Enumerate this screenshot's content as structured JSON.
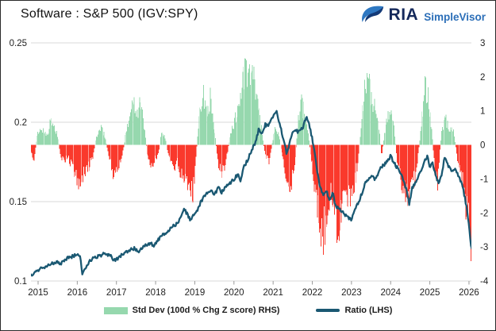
{
  "header": {
    "title": "Software : S&P 500 (IGV:SPY)",
    "logo": {
      "brand": "RIA",
      "product": "SimpleVisor"
    }
  },
  "colors": {
    "bar_positive": "#96d8ae",
    "bar_negative": "#fa392c",
    "ratio_line": "#1a5872",
    "grid": "#d9d9d9",
    "axis_text": "#1f1f1f",
    "tick_mark": "#9a9a9a",
    "brand_navy": "#15295b",
    "brand_blue": "#2c6fb8",
    "eagle_light": "#2e78c2",
    "eagle_dark": "#143a77"
  },
  "chart_data": {
    "type": "combo_bar_line",
    "title": "Software : S&P 500 (IGV:SPY)",
    "x_range": [
      2014.82,
      2026.1
    ],
    "x_ticks": [
      2015,
      2016,
      2017,
      2018,
      2019,
      2020,
      2021,
      2022,
      2023,
      2024,
      2025,
      2026
    ],
    "left_axis": {
      "side": "left",
      "range": [
        0.1,
        0.25
      ],
      "ticks": [
        {
          "v": 0.25,
          "label": "0.25"
        },
        {
          "v": 0.2,
          "label": "0.2"
        },
        {
          "v": 0.15,
          "label": "0.15"
        },
        {
          "v": 0.1,
          "label": "0.1"
        }
      ]
    },
    "right_axis": {
      "side": "right",
      "range": [
        -4,
        3
      ],
      "ticks": [
        {
          "v": 3,
          "label": "3"
        },
        {
          "v": 2,
          "label": "2"
        },
        {
          "v": 1,
          "label": "1"
        },
        {
          "v": 0,
          "label": "0"
        },
        {
          "v": -1,
          "label": "-1"
        },
        {
          "v": -2,
          "label": "-2"
        },
        {
          "v": -3,
          "label": "-3"
        },
        {
          "v": -4,
          "label": "-4"
        }
      ]
    },
    "legend": {
      "position": "bottom",
      "items": [
        {
          "label": "Std Dev (100d % Chg Z score) RHS)",
          "swatch": "bar"
        },
        {
          "label": "Ratio (LHS)",
          "swatch": "line"
        }
      ]
    },
    "series": [
      {
        "name": "Std Dev (100d % Chg Z score) RHS)",
        "type": "bar",
        "axis": "right",
        "points": [
          [
            2014.82,
            -0.25
          ],
          [
            2014.9,
            -0.5
          ],
          [
            2014.98,
            0.35
          ],
          [
            2015.06,
            0.55
          ],
          [
            2015.15,
            0.45
          ],
          [
            2015.25,
            0.4
          ],
          [
            2015.33,
            0.85
          ],
          [
            2015.42,
            0.6
          ],
          [
            2015.5,
            0.3
          ],
          [
            2015.58,
            -0.35
          ],
          [
            2015.66,
            -0.55
          ],
          [
            2015.75,
            -0.4
          ],
          [
            2015.85,
            -0.65
          ],
          [
            2015.95,
            -0.95
          ],
          [
            2016.04,
            -1.2
          ],
          [
            2016.1,
            -1.25
          ],
          [
            2016.2,
            -0.9
          ],
          [
            2016.3,
            -0.7
          ],
          [
            2016.4,
            -0.35
          ],
          [
            2016.5,
            0.3
          ],
          [
            2016.6,
            0.55
          ],
          [
            2016.7,
            0.35
          ],
          [
            2016.8,
            -0.35
          ],
          [
            2016.9,
            -0.9
          ],
          [
            2017.0,
            -1.0
          ],
          [
            2017.08,
            -0.65
          ],
          [
            2017.17,
            -0.2
          ],
          [
            2017.27,
            0.65
          ],
          [
            2017.38,
            1.3
          ],
          [
            2017.45,
            1.5
          ],
          [
            2017.53,
            1.15
          ],
          [
            2017.6,
            1.45
          ],
          [
            2017.7,
            0.75
          ],
          [
            2017.8,
            -0.5
          ],
          [
            2017.9,
            -0.65
          ],
          [
            2018.0,
            -0.5
          ],
          [
            2018.08,
            -0.3
          ],
          [
            2018.15,
            0.45
          ],
          [
            2018.25,
            0.25
          ],
          [
            2018.35,
            -0.55
          ],
          [
            2018.45,
            -0.85
          ],
          [
            2018.55,
            -0.6
          ],
          [
            2018.65,
            -0.95
          ],
          [
            2018.75,
            -1.25
          ],
          [
            2018.85,
            -1.6
          ],
          [
            2018.95,
            -1.72
          ],
          [
            2019.03,
            -0.5
          ],
          [
            2019.1,
            1.0
          ],
          [
            2019.2,
            1.7
          ],
          [
            2019.3,
            1.25
          ],
          [
            2019.4,
            1.55
          ],
          [
            2019.5,
            0.55
          ],
          [
            2019.6,
            -0.6
          ],
          [
            2019.7,
            -1.05
          ],
          [
            2019.8,
            -0.5
          ],
          [
            2019.9,
            0.3
          ],
          [
            2020.0,
            0.75
          ],
          [
            2020.1,
            1.2
          ],
          [
            2020.2,
            1.9
          ],
          [
            2020.3,
            2.55
          ],
          [
            2020.38,
            2.2
          ],
          [
            2020.45,
            2.45
          ],
          [
            2020.55,
            1.85
          ],
          [
            2020.65,
            1.15
          ],
          [
            2020.72,
            0.35
          ],
          [
            2020.8,
            -0.4
          ],
          [
            2020.9,
            -0.55
          ],
          [
            2021.0,
            0.25
          ],
          [
            2021.07,
            0.6
          ],
          [
            2021.15,
            0.3
          ],
          [
            2021.25,
            -0.55
          ],
          [
            2021.35,
            -1.05
          ],
          [
            2021.45,
            -1.35
          ],
          [
            2021.55,
            -0.7
          ],
          [
            2021.65,
            0.9
          ],
          [
            2021.72,
            1.5
          ],
          [
            2021.8,
            1.05
          ],
          [
            2021.9,
            0.35
          ],
          [
            2021.98,
            -0.6
          ],
          [
            2022.08,
            -1.7
          ],
          [
            2022.18,
            -2.65
          ],
          [
            2022.28,
            -3.05
          ],
          [
            2022.38,
            -2.2
          ],
          [
            2022.48,
            -1.55
          ],
          [
            2022.58,
            -2.45
          ],
          [
            2022.68,
            -2.75
          ],
          [
            2022.78,
            -1.65
          ],
          [
            2022.88,
            -2.1
          ],
          [
            2022.98,
            -1.6
          ],
          [
            2023.08,
            -1.25
          ],
          [
            2023.17,
            -0.5
          ],
          [
            2023.27,
            0.95
          ],
          [
            2023.37,
            2.3
          ],
          [
            2023.47,
            1.8
          ],
          [
            2023.57,
            1.4
          ],
          [
            2023.67,
            1.05
          ],
          [
            2023.77,
            -0.35
          ],
          [
            2023.87,
            0.65
          ],
          [
            2023.97,
            1.25
          ],
          [
            2024.07,
            0.85
          ],
          [
            2024.17,
            -0.55
          ],
          [
            2024.27,
            -1.25
          ],
          [
            2024.37,
            -1.6
          ],
          [
            2024.47,
            -1.9
          ],
          [
            2024.57,
            -1.3
          ],
          [
            2024.67,
            -0.85
          ],
          [
            2024.77,
            0.55
          ],
          [
            2024.87,
            1.9
          ],
          [
            2024.97,
            1.45
          ],
          [
            2025.05,
            0.55
          ],
          [
            2025.12,
            -0.75
          ],
          [
            2025.2,
            -1.35
          ],
          [
            2025.3,
            0.5
          ],
          [
            2025.4,
            0.9
          ],
          [
            2025.5,
            0.45
          ],
          [
            2025.6,
            0.6
          ],
          [
            2025.7,
            -0.45
          ],
          [
            2025.8,
            -1.0
          ],
          [
            2025.88,
            -1.6
          ],
          [
            2025.95,
            -2.3
          ],
          [
            2026.02,
            -3.0
          ],
          [
            2026.07,
            -3.7
          ],
          [
            2026.1,
            -3.3
          ]
        ]
      },
      {
        "name": "Ratio (LHS)",
        "type": "line",
        "axis": "left",
        "points": [
          [
            2014.82,
            0.1035
          ],
          [
            2014.95,
            0.1055
          ],
          [
            2015.08,
            0.108
          ],
          [
            2015.2,
            0.1095
          ],
          [
            2015.3,
            0.1105
          ],
          [
            2015.42,
            0.1118
          ],
          [
            2015.5,
            0.1125
          ],
          [
            2015.58,
            0.1108
          ],
          [
            2015.68,
            0.1135
          ],
          [
            2015.8,
            0.1148
          ],
          [
            2015.92,
            0.116
          ],
          [
            2016.0,
            0.1172
          ],
          [
            2016.07,
            0.1162
          ],
          [
            2016.13,
            0.1035
          ],
          [
            2016.22,
            0.109
          ],
          [
            2016.32,
            0.1125
          ],
          [
            2016.45,
            0.1148
          ],
          [
            2016.55,
            0.1158
          ],
          [
            2016.65,
            0.1168
          ],
          [
            2016.75,
            0.117
          ],
          [
            2016.85,
            0.116
          ],
          [
            2016.95,
            0.1128
          ],
          [
            2017.05,
            0.1148
          ],
          [
            2017.15,
            0.1165
          ],
          [
            2017.25,
            0.118
          ],
          [
            2017.35,
            0.1195
          ],
          [
            2017.45,
            0.1205
          ],
          [
            2017.55,
            0.1185
          ],
          [
            2017.65,
            0.1205
          ],
          [
            2017.75,
            0.1225
          ],
          [
            2017.85,
            0.1238
          ],
          [
            2017.95,
            0.1225
          ],
          [
            2018.05,
            0.1255
          ],
          [
            2018.15,
            0.128
          ],
          [
            2018.25,
            0.1305
          ],
          [
            2018.35,
            0.1322
          ],
          [
            2018.45,
            0.1345
          ],
          [
            2018.55,
            0.1362
          ],
          [
            2018.65,
            0.1405
          ],
          [
            2018.72,
            0.1455
          ],
          [
            2018.8,
            0.1425
          ],
          [
            2018.88,
            0.1382
          ],
          [
            2018.95,
            0.1405
          ],
          [
            2019.05,
            0.1438
          ],
          [
            2019.15,
            0.1495
          ],
          [
            2019.3,
            0.1555
          ],
          [
            2019.42,
            0.1575
          ],
          [
            2019.5,
            0.1542
          ],
          [
            2019.6,
            0.159
          ],
          [
            2019.68,
            0.1558
          ],
          [
            2019.78,
            0.1592
          ],
          [
            2019.9,
            0.1618
          ],
          [
            2020.0,
            0.1642
          ],
          [
            2020.1,
            0.1672
          ],
          [
            2020.17,
            0.1632
          ],
          [
            2020.25,
            0.1715
          ],
          [
            2020.35,
            0.1765
          ],
          [
            2020.45,
            0.1822
          ],
          [
            2020.55,
            0.1875
          ],
          [
            2020.63,
            0.1952
          ],
          [
            2020.7,
            0.1918
          ],
          [
            2020.8,
            0.1985
          ],
          [
            2020.88,
            0.1972
          ],
          [
            2020.97,
            0.2025
          ],
          [
            2021.08,
            0.2072
          ],
          [
            2021.17,
            0.1985
          ],
          [
            2021.27,
            0.1888
          ],
          [
            2021.35,
            0.1795
          ],
          [
            2021.45,
            0.1905
          ],
          [
            2021.55,
            0.1952
          ],
          [
            2021.65,
            0.1938
          ],
          [
            2021.75,
            0.1962
          ],
          [
            2021.85,
            0.2042
          ],
          [
            2021.95,
            0.1955
          ],
          [
            2022.05,
            0.1835
          ],
          [
            2022.13,
            0.169
          ],
          [
            2022.2,
            0.1585
          ],
          [
            2022.28,
            0.1538
          ],
          [
            2022.35,
            0.1572
          ],
          [
            2022.45,
            0.1512
          ],
          [
            2022.52,
            0.1555
          ],
          [
            2022.6,
            0.1468
          ],
          [
            2022.7,
            0.1455
          ],
          [
            2022.8,
            0.1425
          ],
          [
            2022.9,
            0.1408
          ],
          [
            2023.0,
            0.1382
          ],
          [
            2023.1,
            0.1455
          ],
          [
            2023.2,
            0.1508
          ],
          [
            2023.35,
            0.1612
          ],
          [
            2023.5,
            0.1665
          ],
          [
            2023.6,
            0.1635
          ],
          [
            2023.75,
            0.1712
          ],
          [
            2023.88,
            0.1742
          ],
          [
            2024.0,
            0.1788
          ],
          [
            2024.1,
            0.1738
          ],
          [
            2024.22,
            0.1695
          ],
          [
            2024.32,
            0.1635
          ],
          [
            2024.4,
            0.1582
          ],
          [
            2024.47,
            0.1482
          ],
          [
            2024.55,
            0.1585
          ],
          [
            2024.65,
            0.163
          ],
          [
            2024.75,
            0.168
          ],
          [
            2024.85,
            0.1742
          ],
          [
            2024.93,
            0.1788
          ],
          [
            2025.0,
            0.172
          ],
          [
            2025.07,
            0.1752
          ],
          [
            2025.15,
            0.1658
          ],
          [
            2025.22,
            0.1618
          ],
          [
            2025.3,
            0.167
          ],
          [
            2025.38,
            0.1782
          ],
          [
            2025.47,
            0.1728
          ],
          [
            2025.55,
            0.1698
          ],
          [
            2025.65,
            0.1705
          ],
          [
            2025.75,
            0.1652
          ],
          [
            2025.85,
            0.1582
          ],
          [
            2025.93,
            0.1475
          ],
          [
            2026.0,
            0.1352
          ],
          [
            2026.05,
            0.1225
          ],
          [
            2026.09,
            0.119
          ]
        ]
      }
    ]
  }
}
